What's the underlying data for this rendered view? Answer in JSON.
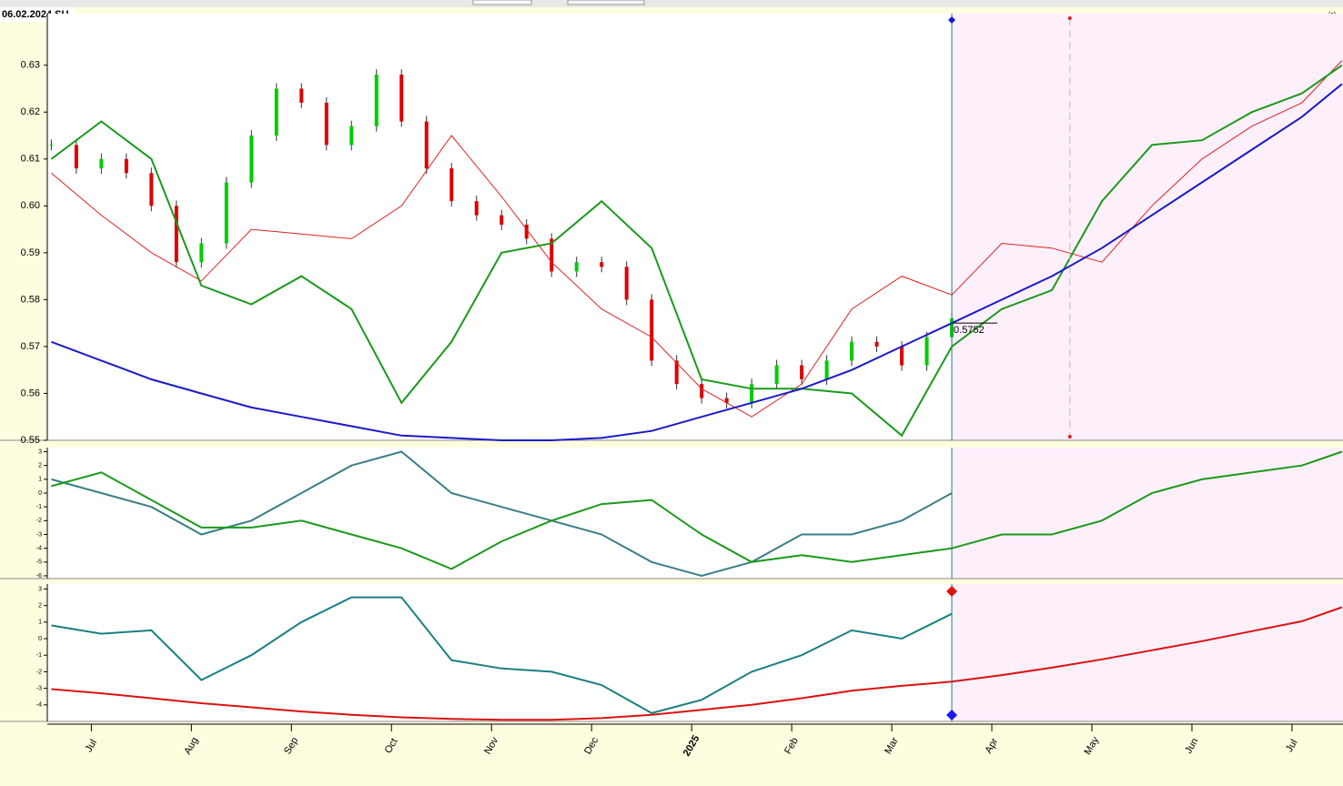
{
  "header": {
    "label": "06.02.2024 SU",
    "corner": "(c)"
  },
  "chart_data": [
    {
      "type": "line",
      "annotation": "0.5752",
      "ylim": [
        0.55,
        0.641
      ],
      "yticks": [
        0.55,
        {
          "value": 0.56,
          "label": "0.56"
        },
        0.57,
        0.58,
        0.59,
        {
          "value": 0.6,
          "label": "0.60"
        },
        0.61,
        {
          "value": 0.62,
          "label": "0.62"
        },
        0.63
      ],
      "x": [
        -0.4,
        0.1,
        0.6,
        1.1,
        1.6,
        2.1,
        2.6,
        3.1,
        3.6,
        4.1,
        4.6,
        5.1,
        5.6,
        6.1,
        6.6,
        7.1,
        7.6,
        8.1,
        8.6,
        9.1,
        9.6,
        10.1,
        10.6,
        11.1,
        11.6,
        12.1,
        12.5
      ],
      "candles": {
        "x": [
          -0.4,
          -0.15,
          0.1,
          0.35,
          0.6,
          0.85,
          1.1,
          1.35,
          1.6,
          1.85,
          2.1,
          2.35,
          2.6,
          2.85,
          3.1,
          3.35,
          3.6,
          3.85,
          4.1,
          4.35,
          4.6,
          4.85,
          5.1,
          5.35,
          5.6,
          5.85,
          6.1,
          6.35,
          6.6,
          6.85,
          7.1,
          7.35,
          7.6,
          7.85,
          8.1,
          8.35,
          8.6
        ],
        "close": [
          0.613,
          0.608,
          0.61,
          0.607,
          0.6,
          0.588,
          0.592,
          0.605,
          0.615,
          0.625,
          0.622,
          0.613,
          0.617,
          0.628,
          0.618,
          0.608,
          0.601,
          0.598,
          0.596,
          0.593,
          0.586,
          0.588,
          0.587,
          0.58,
          0.567,
          0.562,
          0.559,
          0.558,
          0.562,
          0.566,
          0.563,
          0.567,
          0.571,
          0.57,
          0.566,
          0.572,
          0.576
        ],
        "up_color": "#00cc00",
        "down_color": "#dd0000"
      },
      "series": [
        {
          "color": "#e02020",
          "width": 1,
          "values": [
            0.607,
            0.598,
            0.59,
            0.584,
            0.595,
            0.594,
            0.593,
            0.6,
            0.615,
            0.602,
            0.588,
            0.578,
            0.572,
            0.561,
            0.555,
            0.562,
            0.578,
            0.585,
            0.581,
            0.592,
            0.591,
            0.588,
            0.6,
            0.61,
            0.617,
            0.622,
            0.631
          ]
        },
        {
          "color": "#1a9a1a",
          "width": 2,
          "values": [
            0.61,
            0.618,
            0.61,
            0.583,
            0.579,
            0.585,
            0.578,
            0.558,
            0.571,
            0.59,
            0.592,
            0.601,
            0.591,
            0.563,
            0.561,
            0.561,
            0.56,
            0.551,
            0.57,
            0.578,
            0.582,
            0.601,
            0.613,
            0.614,
            0.62,
            0.624,
            0.63
          ]
        },
        {
          "color": "#1a1acc",
          "width": 2,
          "values": [
            0.571,
            0.567,
            0.563,
            0.56,
            0.557,
            0.555,
            0.553,
            0.551,
            0.5505,
            0.55,
            0.55,
            0.5505,
            0.552,
            0.555,
            0.558,
            0.561,
            0.565,
            0.57,
            0.575,
            0.58,
            0.585,
            0.591,
            0.598,
            0.605,
            0.612,
            0.619,
            0.626
          ]
        }
      ]
    },
    {
      "type": "line",
      "ylim": [
        -6.2,
        3.3
      ],
      "yticks": [
        -6,
        -5,
        -4,
        -3,
        -2,
        -1,
        0,
        1,
        2,
        3
      ],
      "x": [
        -0.4,
        0.1,
        0.6,
        1.1,
        1.6,
        2.1,
        2.6,
        3.1,
        3.6,
        4.1,
        4.6,
        5.1,
        5.6,
        6.1,
        6.6,
        7.1,
        7.6,
        8.1,
        8.6,
        9.1,
        9.6,
        10.1,
        10.6,
        11.1,
        11.6,
        12.1,
        12.5
      ],
      "series": [
        {
          "color": "#3a7f86",
          "width": 2,
          "values": [
            1,
            0,
            -1,
            -3,
            -2,
            0,
            2,
            3,
            0,
            -1,
            -2,
            -3,
            -5,
            -6,
            -5,
            -3,
            -3,
            -2,
            0,
            null,
            null,
            null,
            null,
            null,
            null,
            null,
            null
          ]
        },
        {
          "color": "#1a9a1a",
          "width": 2,
          "values": [
            0.5,
            1.5,
            -0.5,
            -2.5,
            -2.5,
            -2,
            -3,
            -4,
            -5.5,
            -3.5,
            -2,
            -0.8,
            -0.5,
            -3,
            -5,
            -4.5,
            -5,
            -4.5,
            -4,
            -3,
            -3,
            -2,
            0,
            1,
            1.5,
            2,
            3
          ]
        }
      ]
    },
    {
      "type": "line",
      "ylim": [
        -5,
        3.3
      ],
      "yticks": [
        -4,
        -3,
        -2,
        -1,
        0,
        1,
        2,
        3
      ],
      "x": [
        -0.4,
        0.1,
        0.6,
        1.1,
        1.6,
        2.1,
        2.6,
        3.1,
        3.6,
        4.1,
        4.6,
        5.1,
        5.6,
        6.1,
        6.6,
        7.1,
        7.6,
        8.1,
        8.6,
        9.1,
        9.6,
        10.1,
        10.6,
        11.1,
        11.6,
        12.1,
        12.5
      ],
      "xlim": [
        -0.44,
        12.51
      ],
      "xticks": [
        {
          "value": 0,
          "label": "Jul"
        },
        {
          "value": 1,
          "label": "Aug"
        },
        {
          "value": 2,
          "label": "Sep"
        },
        {
          "value": 3,
          "label": "Oct"
        },
        {
          "value": 4,
          "label": "Nov"
        },
        {
          "value": 5,
          "label": "Dec"
        },
        {
          "value": 6,
          "label": "2025"
        },
        {
          "value": 7,
          "label": "Feb"
        },
        {
          "value": 8,
          "label": "Mar"
        },
        {
          "value": 9,
          "label": "Apr"
        },
        {
          "value": 10,
          "label": "May"
        },
        {
          "value": 11,
          "label": "Jun"
        },
        {
          "value": 12,
          "label": "Jul"
        }
      ],
      "series": [
        {
          "color": "#1a8080",
          "width": 2,
          "values": [
            0.8,
            0.3,
            0.5,
            -2.5,
            -1,
            1,
            2.5,
            2.5,
            -1.3,
            -1.8,
            -2,
            -2.8,
            -4.5,
            -3.7,
            -2,
            -1,
            0.5,
            0,
            1.5,
            null,
            null,
            null,
            null,
            null,
            null,
            null,
            null
          ]
        },
        {
          "color": "#dd1111",
          "width": 2,
          "values": [
            -3.05,
            -3.3,
            -3.6,
            -3.9,
            -4.15,
            -4.4,
            -4.6,
            -4.75,
            -4.85,
            -4.9,
            -4.9,
            -4.8,
            -4.6,
            -4.3,
            -4,
            -3.6,
            -3.15,
            -2.85,
            -2.6,
            -2.2,
            -1.75,
            -1.25,
            -0.7,
            -0.15,
            0.45,
            1.05,
            1.9
          ]
        }
      ]
    }
  ]
}
